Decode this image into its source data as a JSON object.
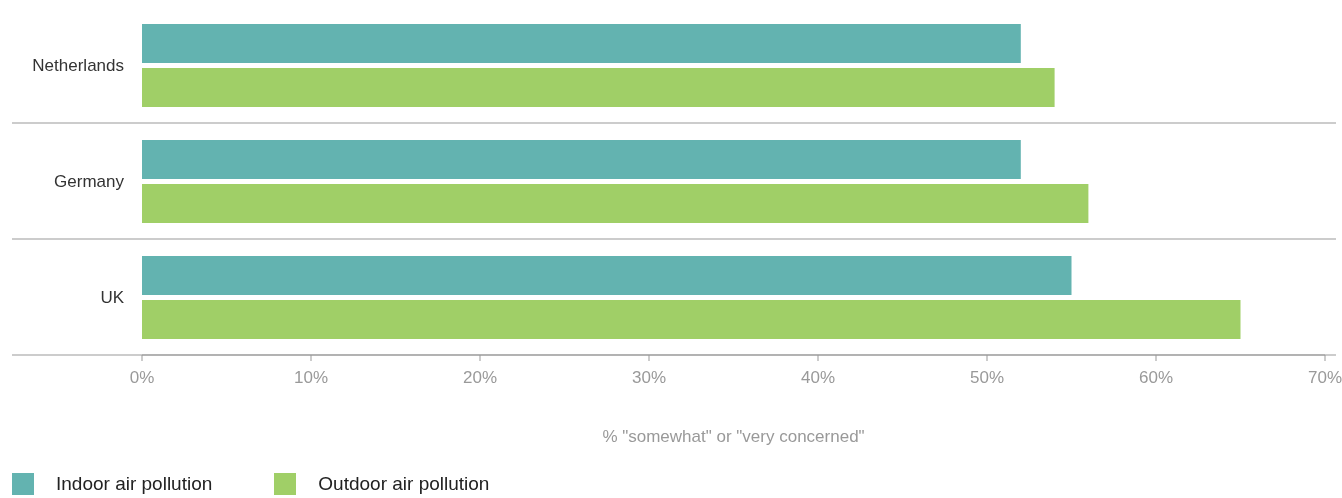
{
  "chart_data": {
    "type": "bar",
    "orientation": "horizontal",
    "categories": [
      "Netherlands",
      "Germany",
      "UK"
    ],
    "series": [
      {
        "name": "Indoor air pollution",
        "color": "#63b3b0",
        "values": [
          52,
          52,
          55
        ]
      },
      {
        "name": "Outdoor air pollution",
        "color": "#a0cf67",
        "values": [
          54,
          56,
          65
        ]
      }
    ],
    "xlabel": "% \"somewhat\" or \"very concerned\"",
    "xlim": [
      0,
      70
    ],
    "xticks": [
      {
        "value": 0,
        "label": "0%"
      },
      {
        "value": 10,
        "label": "10%"
      },
      {
        "value": 20,
        "label": "20%"
      },
      {
        "value": 30,
        "label": "30%"
      },
      {
        "value": 40,
        "label": "40%"
      },
      {
        "value": 50,
        "label": "50%"
      },
      {
        "value": 60,
        "label": "60%"
      },
      {
        "value": 70,
        "label": "70%"
      }
    ],
    "legend": "bottom left"
  }
}
